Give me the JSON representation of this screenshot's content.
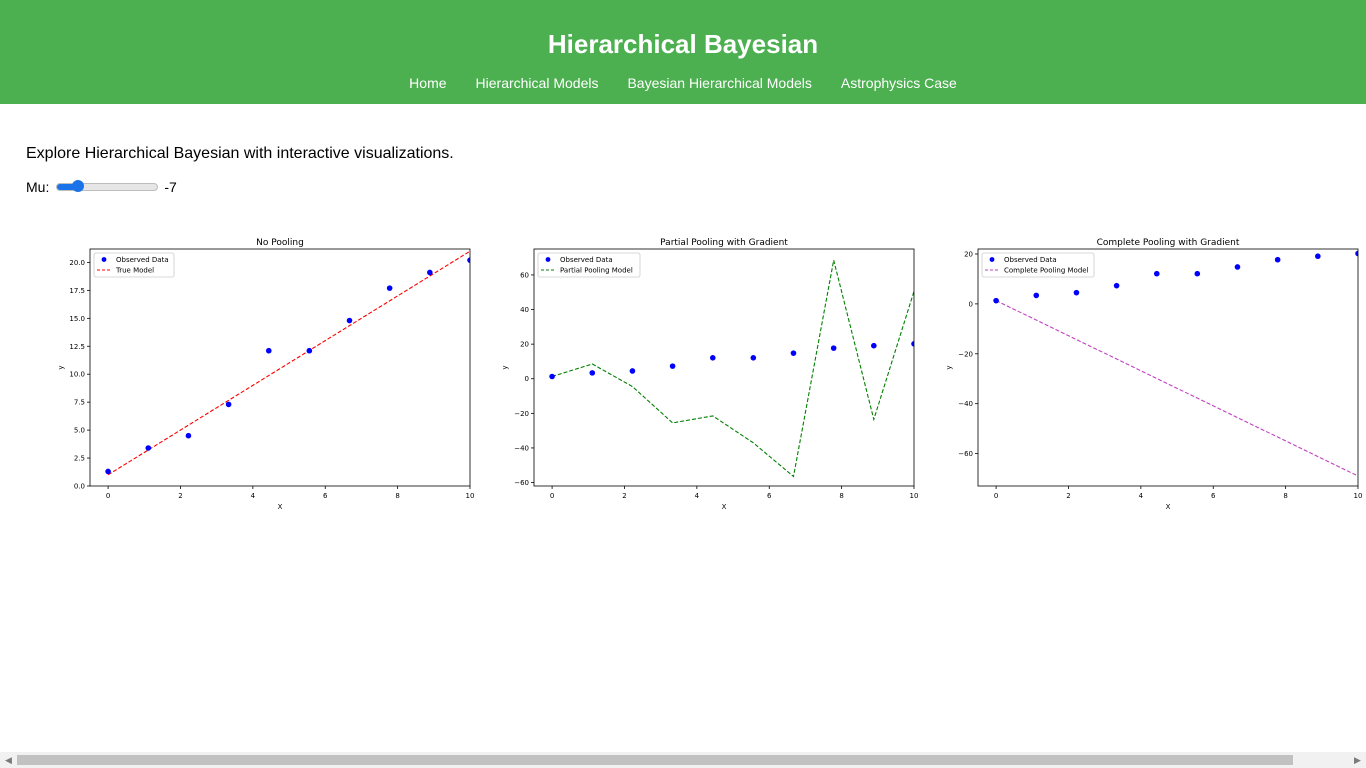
{
  "header": {
    "title": "Hierarchical Bayesian",
    "nav": [
      "Home",
      "Hierarchical Models",
      "Bayesian Hierarchical Models",
      "Astrophysics Case"
    ]
  },
  "main": {
    "intro": "Explore Hierarchical Bayesian with interactive visualizations.",
    "slider": {
      "label": "Mu:",
      "value": "-7",
      "min": -10,
      "max": 10
    }
  },
  "chart_data": [
    {
      "type": "line",
      "title": "No Pooling",
      "xlabel": "X",
      "ylabel": "y",
      "xlim": [
        -0.5,
        10
      ],
      "ylim": [
        0,
        21.2
      ],
      "xticks": [
        0,
        2,
        4,
        6,
        8,
        10
      ],
      "yticks": [
        0.0,
        2.5,
        5.0,
        7.5,
        10.0,
        12.5,
        15.0,
        17.5,
        20.0
      ],
      "yticklabels": [
        "0.0",
        "2.5",
        "5.0",
        "7.5",
        "10.0",
        "12.5",
        "15.0",
        "17.5",
        "20.0"
      ],
      "scatter": {
        "name": "Observed Data",
        "color": "#0000ff",
        "x": [
          0,
          1.11,
          2.22,
          3.33,
          4.44,
          5.56,
          6.67,
          7.78,
          8.89,
          10
        ],
        "y": [
          1.3,
          3.4,
          4.5,
          7.3,
          12.1,
          12.1,
          14.8,
          17.7,
          19.1,
          20.2
        ]
      },
      "line": {
        "name": "True Model",
        "color": "#ff0000",
        "style": "dashed",
        "x": [
          0,
          10
        ],
        "y": [
          1.0,
          21.0
        ]
      },
      "legend": "top-left"
    },
    {
      "type": "line",
      "title": "Partial Pooling with Gradient",
      "xlabel": "X",
      "ylabel": "y",
      "xlim": [
        -0.5,
        10
      ],
      "ylim": [
        -62,
        75
      ],
      "xticks": [
        0,
        2,
        4,
        6,
        8,
        10
      ],
      "yticks": [
        -60,
        -40,
        -20,
        0,
        20,
        40,
        60
      ],
      "yticklabels": [
        "−60",
        "−40",
        "−20",
        "0",
        "20",
        "40",
        "60"
      ],
      "scatter": {
        "name": "Observed Data",
        "color": "#0000ff",
        "x": [
          0,
          1.11,
          2.22,
          3.33,
          4.44,
          5.56,
          6.67,
          7.78,
          8.89,
          10
        ],
        "y": [
          1.3,
          3.4,
          4.5,
          7.3,
          12.1,
          12.1,
          14.8,
          17.7,
          19.1,
          20.2
        ]
      },
      "line": {
        "name": "Partial Pooling Model",
        "color": "#008000",
        "style": "dashed",
        "x": [
          0,
          1.11,
          2.22,
          3.33,
          4.44,
          5.56,
          6.67,
          7.78,
          8.89,
          10
        ],
        "y": [
          1.3,
          8.5,
          -4.5,
          -25.5,
          -21.5,
          -37.0,
          -56.5,
          68.5,
          -23.5,
          50.5
        ]
      },
      "legend": "top-left"
    },
    {
      "type": "line",
      "title": "Complete Pooling with Gradient",
      "xlabel": "X",
      "ylabel": "y",
      "xlim": [
        -0.5,
        10
      ],
      "ylim": [
        -73,
        22
      ],
      "xticks": [
        0,
        2,
        4,
        6,
        8,
        10
      ],
      "yticks": [
        -60,
        -40,
        -20,
        0,
        20
      ],
      "yticklabels": [
        "−60",
        "−40",
        "−20",
        "0",
        "20"
      ],
      "scatter": {
        "name": "Observed Data",
        "color": "#0000ff",
        "x": [
          0,
          1.11,
          2.22,
          3.33,
          4.44,
          5.56,
          6.67,
          7.78,
          8.89,
          10
        ],
        "y": [
          1.3,
          3.4,
          4.5,
          7.3,
          12.1,
          12.1,
          14.8,
          17.7,
          19.1,
          20.2
        ]
      },
      "line": {
        "name": "Complete Pooling Model",
        "color": "#c040c0",
        "style": "dashed",
        "x": [
          0,
          10
        ],
        "y": [
          1.3,
          -69.0
        ]
      },
      "legend": "top-left"
    }
  ]
}
